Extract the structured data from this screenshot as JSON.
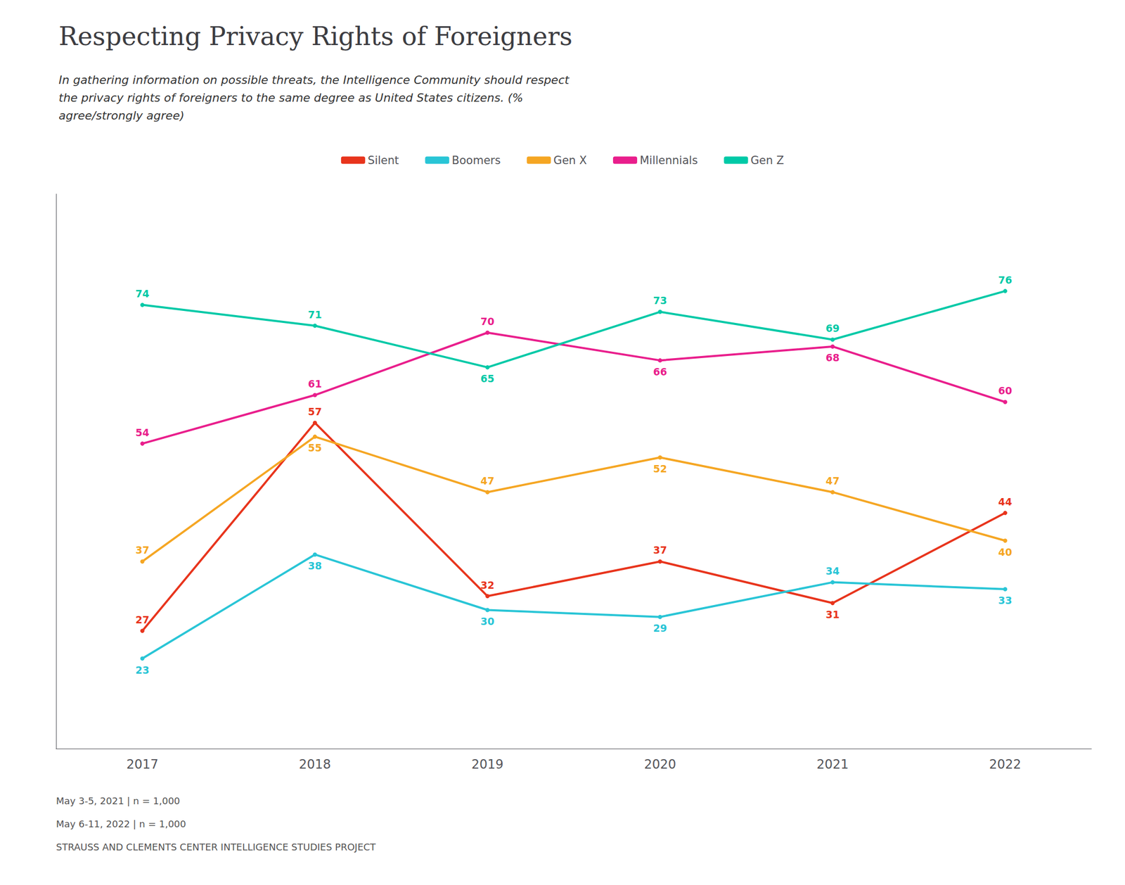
{
  "chart_data": {
    "type": "line",
    "title": "Respecting Privacy Rights of Foreigners",
    "subtitle": "In gathering information on possible threats, the Intelligence Community should respect\nthe privacy rights of foreigners to the same degree as United States citizens. (%\nagree/strongly agree)",
    "categories": [
      "2017",
      "2018",
      "2019",
      "2020",
      "2021",
      "2022"
    ],
    "series": [
      {
        "name": "Silent",
        "color": "#e8341c",
        "values": [
          27,
          57,
          32,
          37,
          31,
          44
        ]
      },
      {
        "name": "Boomers",
        "color": "#29c5d6",
        "values": [
          23,
          38,
          30,
          29,
          34,
          33
        ]
      },
      {
        "name": "Gen X",
        "color": "#f5a623",
        "values": [
          37,
          55,
          47,
          52,
          47,
          40
        ]
      },
      {
        "name": "Millennials",
        "color": "#e91e8c",
        "values": [
          54,
          61,
          70,
          66,
          68,
          60
        ]
      },
      {
        "name": "Gen Z",
        "color": "#00c9a7",
        "values": [
          74,
          71,
          65,
          73,
          69,
          76
        ]
      }
    ],
    "ylim": [
      10,
      90
    ],
    "grid": false,
    "legend": "top",
    "data_labels": true,
    "tick_labels": "x",
    "annotations": [
      "May 3-5, 2021 | n = 1,000",
      "May 6-11, 2022 | n = 1,000",
      "STRAUSS AND CLEMENTS CENTER INTELLIGENCE STUDIES PROJECT"
    ]
  }
}
